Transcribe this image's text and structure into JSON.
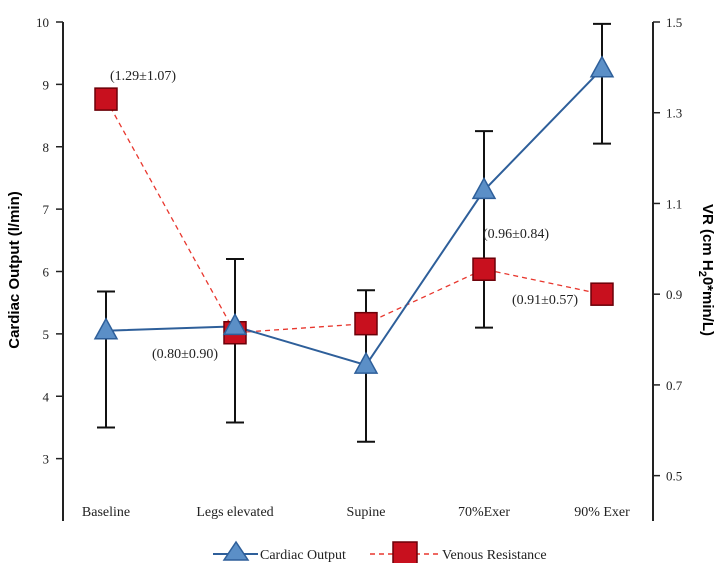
{
  "chart_data": {
    "type": "line",
    "categories": [
      "Baseline",
      "Legs elevated",
      "Supine",
      "70%Exer",
      "90% Exer"
    ],
    "y_left": {
      "label": "Cardiac Output (l/min)",
      "range": [
        2,
        10
      ],
      "ticks": [
        3,
        4,
        5,
        6,
        7,
        8,
        9,
        10
      ]
    },
    "y_right": {
      "label_prefix": "VR (cm H",
      "label_sub": "2",
      "label_suffix": "0*min/L)",
      "range": [
        0.4,
        1.5
      ],
      "ticks": [
        0.5,
        0.7,
        0.9,
        1.1,
        1.3,
        1.5
      ]
    },
    "series": [
      {
        "name": "Cardiac Output",
        "axis": "left",
        "color": "#2e5f9a",
        "marker": "triangle",
        "marker_fill": "#5b8fc7",
        "values": [
          5.05,
          5.12,
          4.5,
          7.3,
          9.25
        ],
        "err_low": [
          3.5,
          3.58,
          3.27,
          5.1,
          8.05
        ],
        "err_high": [
          5.68,
          6.2,
          5.7,
          8.25,
          9.97
        ]
      },
      {
        "name": "Venous Resistance",
        "axis": "right",
        "color": "#e8372e",
        "marker": "square",
        "marker_fill": "#c8101e",
        "dashed": true,
        "values": [
          1.33,
          0.815,
          0.835,
          0.955,
          0.9
        ]
      }
    ],
    "annotations": [
      "(1.29±1.07)",
      "(0.80±0.90)",
      "(0.96±0.84)",
      "(0.91±0.57)"
    ],
    "legend_position": "bottom-center",
    "grid": false
  }
}
